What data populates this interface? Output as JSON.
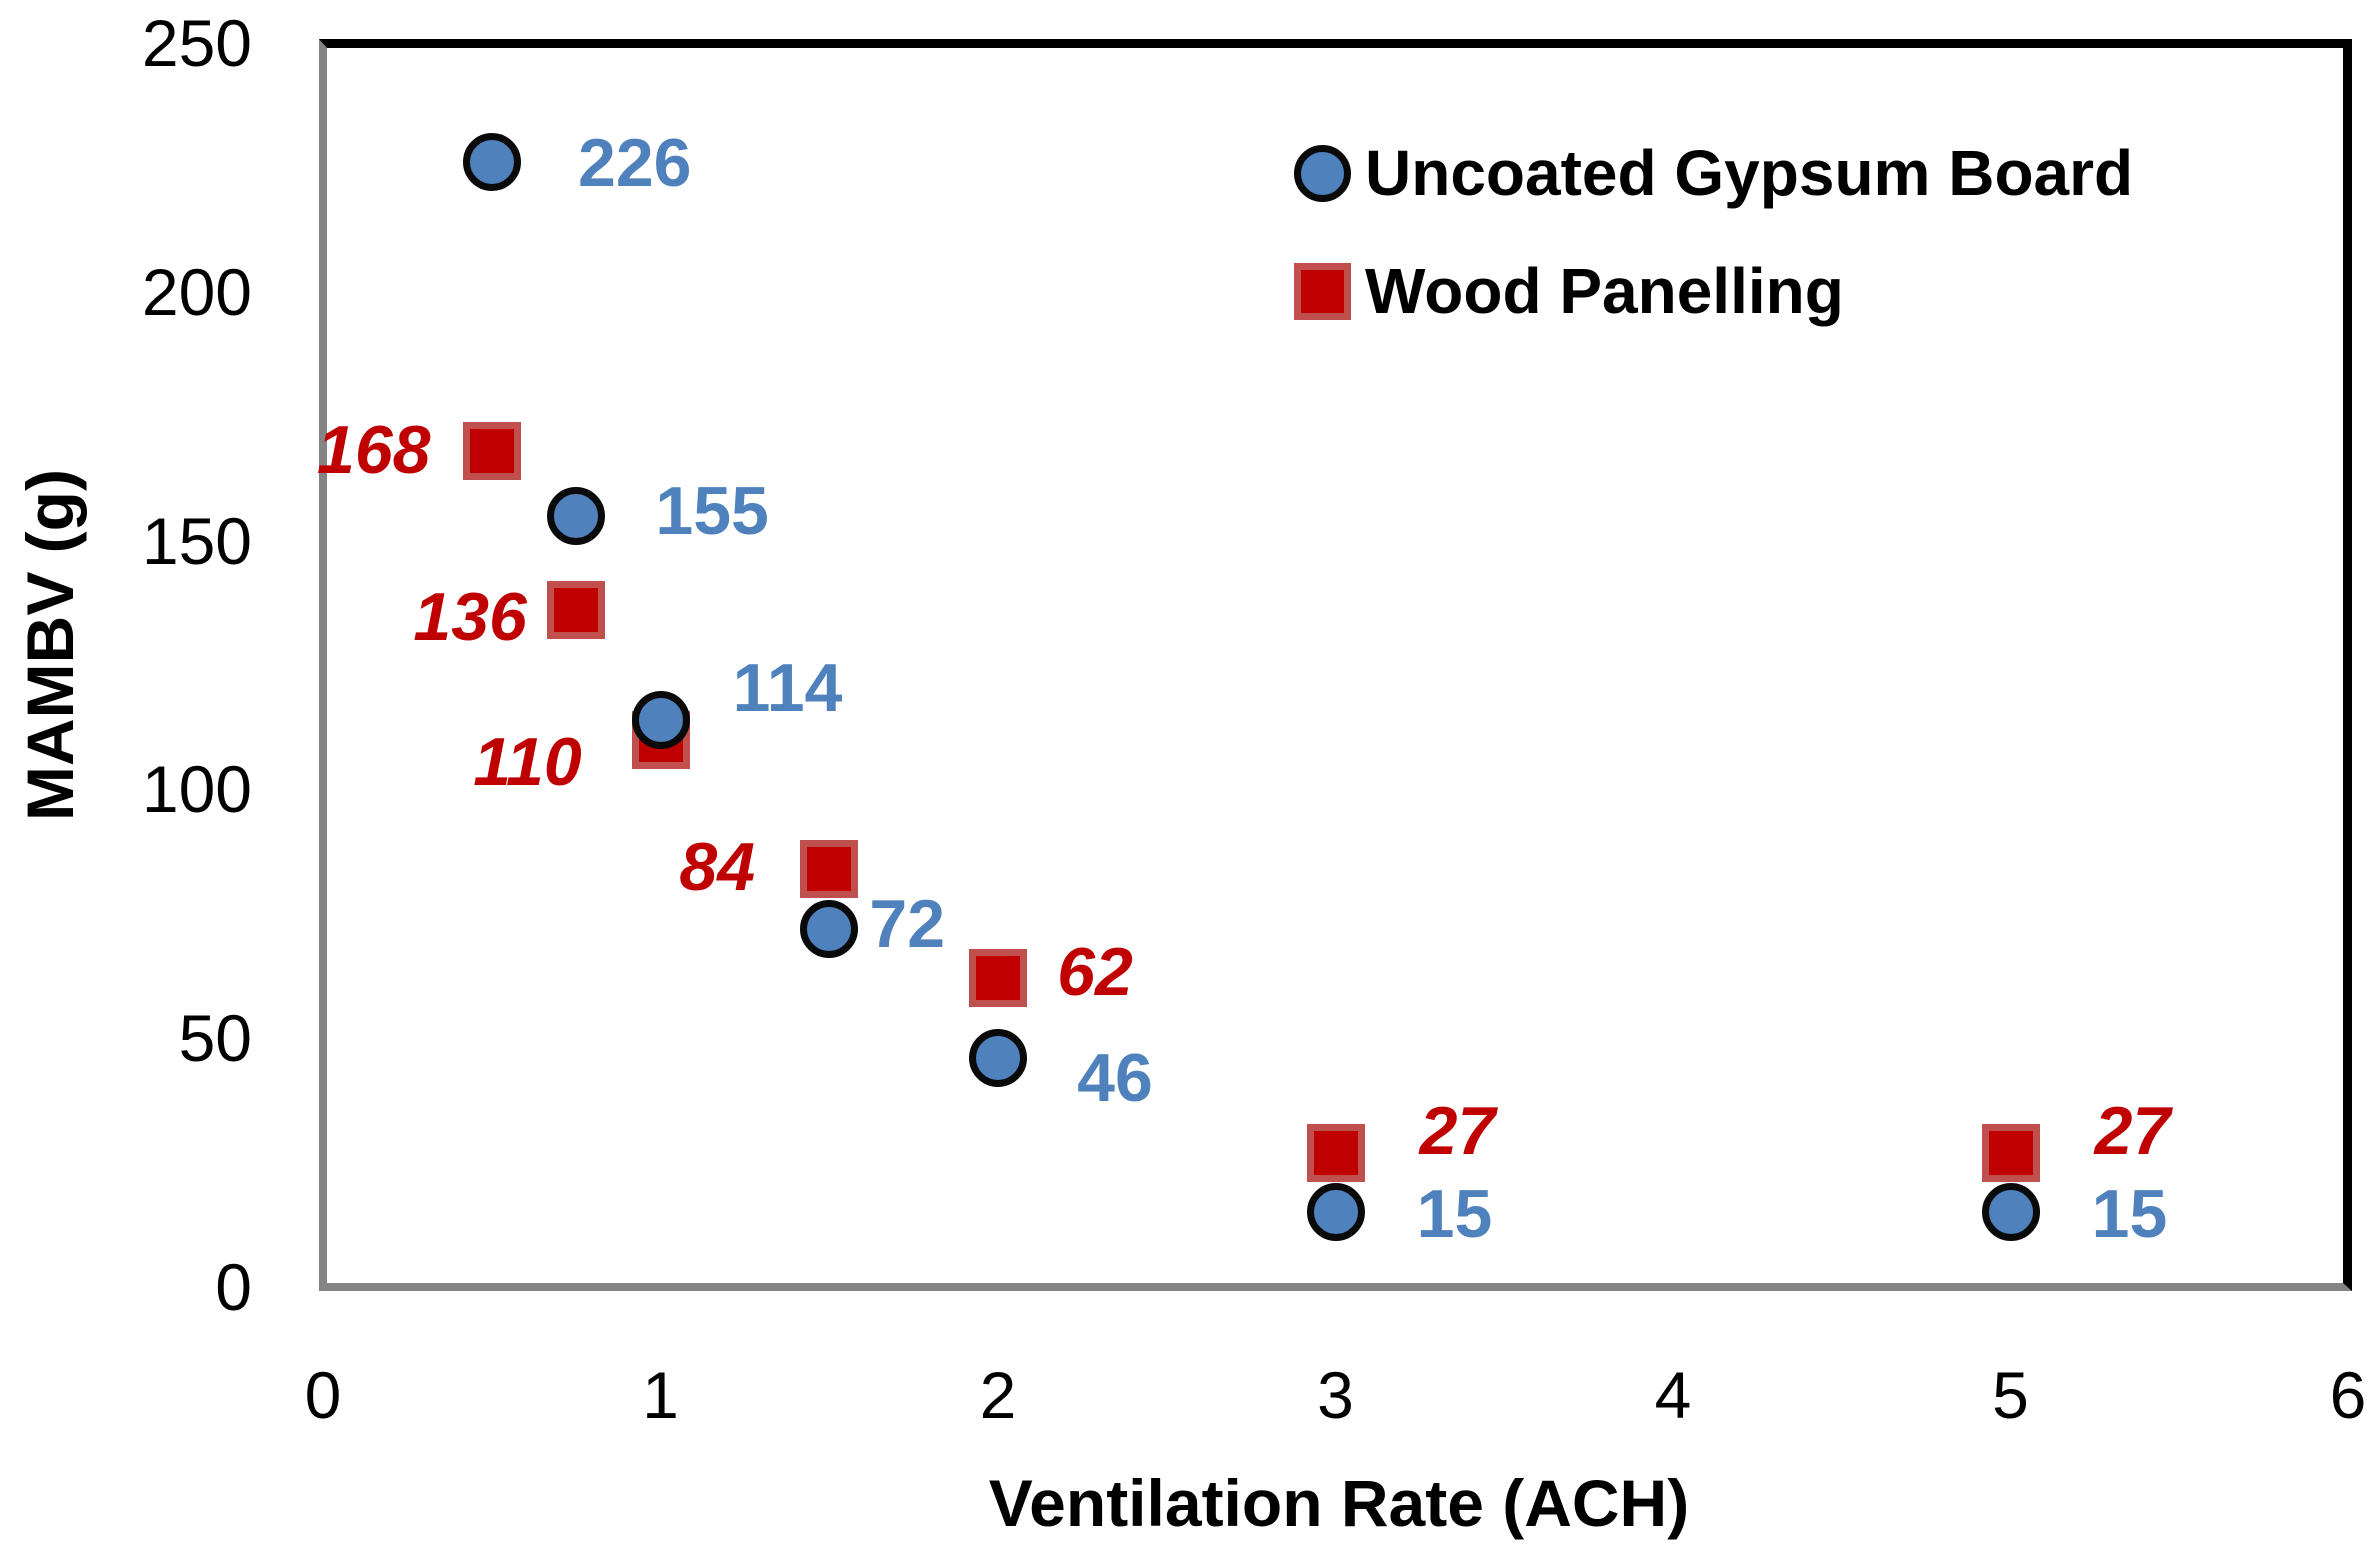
{
  "chart_data": {
    "type": "scatter",
    "title": "",
    "xlabel": "Ventilation Rate (ACH)",
    "ylabel": "MAMBV (g)",
    "xlim": [
      0,
      6
    ],
    "ylim": [
      0,
      250
    ],
    "x_ticks": [
      "0",
      "1",
      "2",
      "3",
      "4",
      "5",
      "6"
    ],
    "y_ticks": [
      "0",
      "50",
      "100",
      "150",
      "200",
      "250"
    ],
    "grid": false,
    "legend_position": "top-right-inside",
    "axis_line_color": "#848484",
    "plot_border_color": "#000000",
    "background_color": "#ffffff",
    "series": [
      {
        "name": "Uncoated Gypsum Board",
        "marker": "circle",
        "fill_color": "#4F81BD",
        "edge_color": "#0a0a0a",
        "label_color": "#4F81BD",
        "label_style": "bold",
        "points": [
          {
            "x": 0.5,
            "y": 226,
            "label": "226",
            "label_dx": 143,
            "label_dy": 1
          },
          {
            "x": 0.75,
            "y": 155,
            "label": "155",
            "label_dx": 136,
            "label_dy": -5
          },
          {
            "x": 1,
            "y": 114,
            "label": "114",
            "label_dx": 127,
            "label_dy": -32
          },
          {
            "x": 1.5,
            "y": 72,
            "label": "72",
            "label_dx": 78,
            "label_dy": -5
          },
          {
            "x": 2,
            "y": 46,
            "label": "46",
            "label_dx": 117,
            "label_dy": 20
          },
          {
            "x": 3,
            "y": 15,
            "label": "15",
            "label_dx": 119,
            "label_dy": 2
          },
          {
            "x": 5,
            "y": 15,
            "label": "15",
            "label_dx": 119,
            "label_dy": 2
          }
        ]
      },
      {
        "name": "Wood Panelling",
        "marker": "square",
        "fill_color": "#C00000",
        "edge_color": "#C0504D",
        "label_color": "#C00000",
        "label_style": "bold-italic",
        "points": [
          {
            "x": 0.5,
            "y": 168,
            "label": "168",
            "label_dx": -118,
            "label_dy": -1
          },
          {
            "x": 0.75,
            "y": 136,
            "label": "136",
            "label_dx": -106,
            "label_dy": 7
          },
          {
            "x": 1,
            "y": 110,
            "label": "110",
            "label_dx": -133,
            "label_dy": 22
          },
          {
            "x": 1.5,
            "y": 84,
            "label": "84",
            "label_dx": -112,
            "label_dy": -2
          },
          {
            "x": 2,
            "y": 62,
            "label": "62",
            "label_dx": 97,
            "label_dy": -6
          },
          {
            "x": 3,
            "y": 27,
            "label": "27",
            "label_dx": 122,
            "label_dy": -22
          },
          {
            "x": 5,
            "y": 27,
            "label": "27",
            "label_dx": 122,
            "label_dy": -22
          }
        ]
      }
    ]
  }
}
